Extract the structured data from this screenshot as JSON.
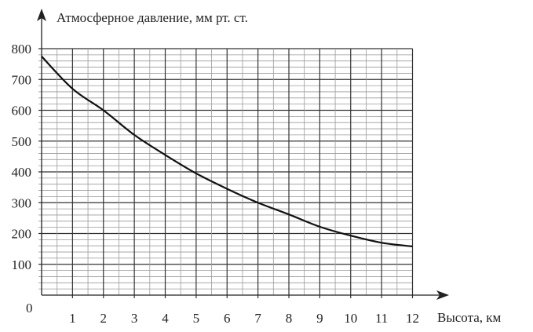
{
  "chart_data": {
    "type": "line",
    "title": "",
    "xlabel": "Высота, км",
    "ylabel": "Атмосферное давление, мм  рт. ст.",
    "xlim": [
      0,
      12
    ],
    "ylim": [
      0,
      800
    ],
    "x_ticks": [
      "1",
      "2",
      "3",
      "4",
      "5",
      "6",
      "7",
      "8",
      "9",
      "10",
      "11",
      "12"
    ],
    "y_ticks": [
      "100",
      "200",
      "300",
      "400",
      "500",
      "600",
      "700",
      "800"
    ],
    "origin_label": "0",
    "grid": true,
    "grid_minor": {
      "x_step": 0.5,
      "y_step": 20
    },
    "series": [
      {
        "x": [
          0,
          1,
          2,
          3,
          4,
          5,
          6,
          7,
          8,
          9,
          10,
          11,
          12
        ],
        "y": [
          775,
          670,
          600,
          520,
          455,
          395,
          345,
          300,
          262,
          222,
          193,
          170,
          158
        ],
        "color": "#111111"
      }
    ]
  }
}
